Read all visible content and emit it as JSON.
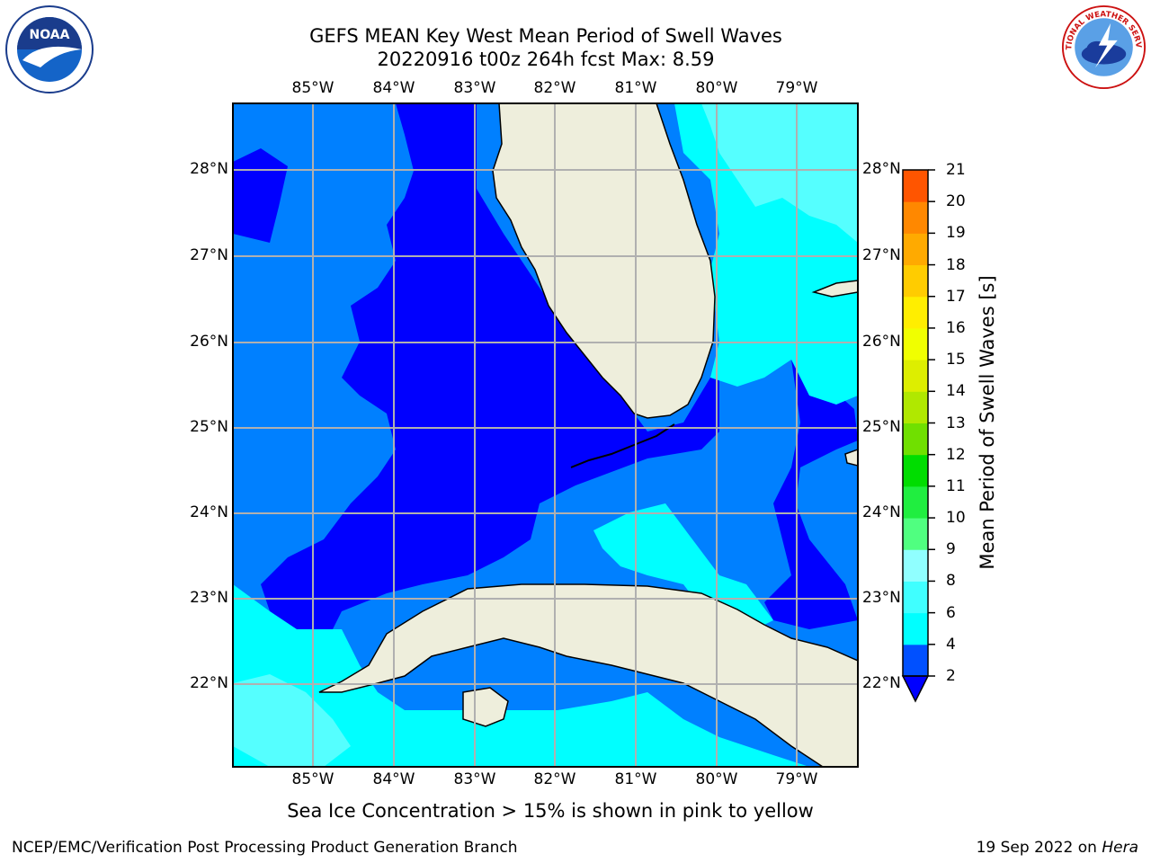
{
  "header": {
    "title_line1": "GEFS MEAN Key West Mean Period of Swell Waves",
    "title_line2": "20220916 t00z 264h fcst   Max: 8.59"
  },
  "axes": {
    "lon_labels": [
      "85°W",
      "84°W",
      "83°W",
      "82°W",
      "81°W",
      "80°W",
      "79°W"
    ],
    "lat_labels": [
      "28°N",
      "27°N",
      "26°N",
      "25°N",
      "24°N",
      "23°N",
      "22°N"
    ]
  },
  "colorbar": {
    "label": "Mean Period of Swell Waves [s]",
    "ticks": [
      "21",
      "20",
      "19",
      "18",
      "17",
      "16",
      "15",
      "14",
      "13",
      "12",
      "11",
      "10",
      "9",
      "8",
      "6",
      "4",
      "2"
    ],
    "colors": [
      "#0050ff",
      "#00ffff",
      "#40ffff",
      "#90ffff",
      "#50ff80",
      "#20ee40",
      "#00dd00",
      "#70e000",
      "#b0e800",
      "#ddee00",
      "#f0ff00",
      "#ffee00",
      "#ffcc00",
      "#ffaa00",
      "#ff8800",
      "#ff5500",
      "#ff3000",
      "#ff0000"
    ]
  },
  "map_colors": {
    "deep_blue": "#0000ff",
    "blue": "#0080ff",
    "cyan": "#00ffff",
    "light_cyan": "#55ffff",
    "land": "#eeeedc"
  },
  "subtitle": "Sea Ice Concentration > 15% is shown in pink to yellow",
  "footer": {
    "left": "NCEP/EMC/Verification Post Processing Product Generation Branch",
    "date": "19 Sep 2022 on ",
    "host": "Hera"
  },
  "logos": {
    "noaa_text": "NOAA",
    "nws_text": "NATIONAL WEATHER SERVICE"
  }
}
